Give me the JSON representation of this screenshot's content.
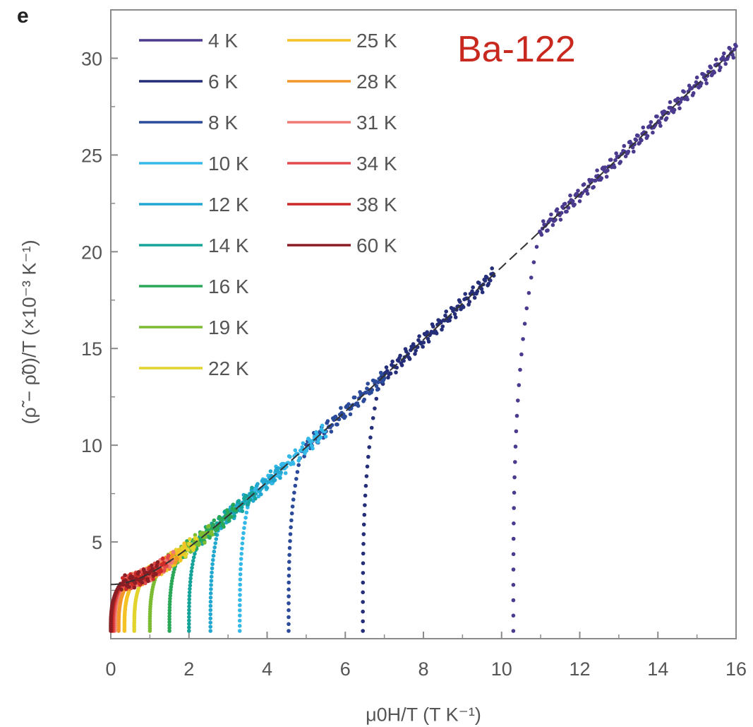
{
  "panel_letter": "e",
  "annotation": "Ba-122",
  "chart_data": {
    "type": "scatter",
    "xlabel": "μ0H/T (T K⁻¹)",
    "ylabel": "(ρ̃ − ρ̃0)/T (×10⁻³ K⁻¹)",
    "xlim": [
      0,
      16
    ],
    "ylim": [
      0,
      32.5
    ],
    "xticks": [
      0,
      2,
      4,
      6,
      8,
      10,
      12,
      14,
      16
    ],
    "yticks": [
      5,
      10,
      15,
      20,
      25,
      30
    ],
    "grid": false,
    "legend_position": "top-left",
    "scaling_curve": {
      "style": "dashed",
      "color": "#333333",
      "form": "y = sqrt(2.8^2 + (1.9x)^2)"
    },
    "series": [
      {
        "name": "4 K",
        "color": "#4b3a8e",
        "x_onset": 10.3,
        "x_max": 16.0
      },
      {
        "name": "6 K",
        "color": "#252e78",
        "x_onset": 6.45,
        "x_max": 9.8
      },
      {
        "name": "8 K",
        "color": "#2b4a9a",
        "x_onset": 4.55,
        "x_max": 7.0
      },
      {
        "name": "10 K",
        "color": "#34b8e8",
        "x_onset": 3.3,
        "x_max": 5.5
      },
      {
        "name": "12 K",
        "color": "#22a8d0",
        "x_onset": 2.55,
        "x_max": 4.4
      },
      {
        "name": "14 K",
        "color": "#16a39a",
        "x_onset": 2.0,
        "x_max": 3.7
      },
      {
        "name": "16 K",
        "color": "#2aa858",
        "x_onset": 1.5,
        "x_max": 3.2
      },
      {
        "name": "19 K",
        "color": "#7cbc32",
        "x_onset": 1.0,
        "x_max": 2.6
      },
      {
        "name": "22 K",
        "color": "#e2d42c",
        "x_onset": 0.6,
        "x_max": 2.2
      },
      {
        "name": "25 K",
        "color": "#f4c224",
        "x_onset": 0.35,
        "x_max": 1.9
      },
      {
        "name": "28 K",
        "color": "#f2962a",
        "x_onset": 0.2,
        "x_max": 1.7
      },
      {
        "name": "31 K",
        "color": "#ee7a76",
        "x_onset": 0.1,
        "x_max": 1.6
      },
      {
        "name": "34 K",
        "color": "#e24a4a",
        "x_onset": 0.06,
        "x_max": 1.5
      },
      {
        "name": "38 K",
        "color": "#cc2a26",
        "x_onset": 0.03,
        "x_max": 1.4
      },
      {
        "name": "60 K",
        "color": "#8a1e24",
        "x_onset": 0.0,
        "x_max": 1.2
      }
    ]
  }
}
